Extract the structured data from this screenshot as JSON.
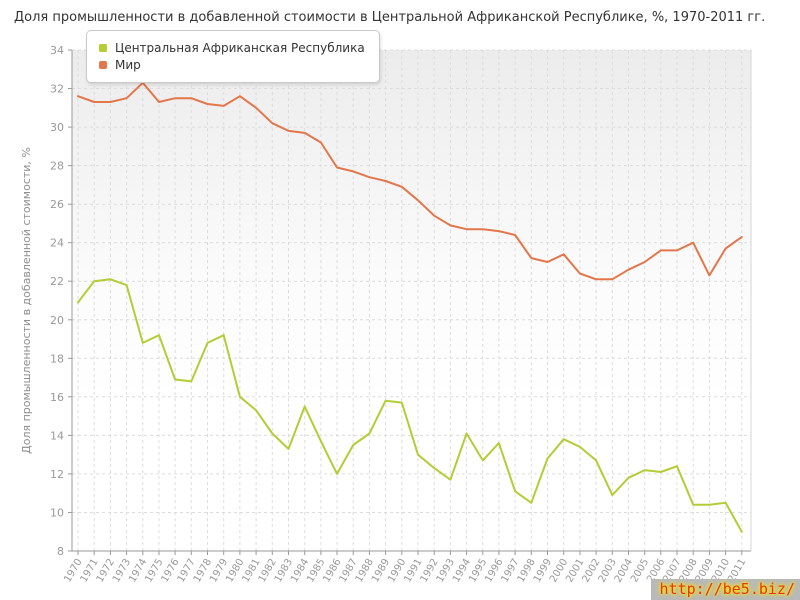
{
  "title": "Доля промышленности в добавленной стоимости в Центральной Африканской Республике, %, 1970-2011 гг.",
  "watermark": "http://be5.biz/",
  "chart_data": {
    "type": "line",
    "title": "Доля промышленности в добавленной стоимости в Центральной Африканской Республике, %, 1970-2011 гг.",
    "xlabel": "",
    "ylabel": "Доля промышленности в добавленной стоимости, %",
    "ylim": [
      8,
      34
    ],
    "yticks": [
      8,
      10,
      12,
      14,
      16,
      18,
      20,
      22,
      24,
      26,
      28,
      30,
      32,
      34
    ],
    "grid": true,
    "legend_position": "top-left",
    "categories": [
      "1970",
      "1971",
      "1972",
      "1973",
      "1974",
      "1975",
      "1976",
      "1977",
      "1978",
      "1979",
      "1980",
      "1981",
      "1982",
      "1983",
      "1984",
      "1985",
      "1986",
      "1987",
      "1988",
      "1989",
      "1990",
      "1991",
      "1992",
      "1993",
      "1994",
      "1995",
      "1996",
      "1997",
      "1998",
      "1999",
      "2000",
      "2001",
      "2002",
      "2003",
      "2004",
      "2005",
      "2006",
      "2007",
      "2008",
      "2009",
      "2010",
      "2011"
    ],
    "series": [
      {
        "name": "Центральная Африканская Республика",
        "color": "#b2cd36",
        "values": [
          20.9,
          22.0,
          22.1,
          21.8,
          18.8,
          19.2,
          16.9,
          16.8,
          18.8,
          19.2,
          16.0,
          15.3,
          14.1,
          13.3,
          15.5,
          13.7,
          12.0,
          13.5,
          14.1,
          15.8,
          15.7,
          13.0,
          12.3,
          11.7,
          14.1,
          12.7,
          13.6,
          11.1,
          10.5,
          12.8,
          13.8,
          13.4,
          12.7,
          10.9,
          11.8,
          12.2,
          12.1,
          12.4,
          10.4,
          10.4,
          10.5,
          9.0
        ]
      },
      {
        "name": "Мир",
        "color": "#e3764a",
        "values": [
          31.6,
          31.3,
          31.3,
          31.5,
          32.3,
          31.3,
          31.5,
          31.5,
          31.2,
          31.1,
          31.6,
          31.0,
          30.2,
          29.8,
          29.7,
          29.2,
          27.9,
          27.7,
          27.4,
          27.2,
          26.9,
          26.2,
          25.4,
          24.9,
          24.7,
          24.7,
          24.6,
          24.4,
          23.2,
          23.0,
          23.4,
          22.4,
          22.1,
          22.1,
          22.6,
          23.0,
          23.6,
          23.6,
          24.0,
          22.3,
          23.7,
          24.3
        ]
      }
    ]
  }
}
